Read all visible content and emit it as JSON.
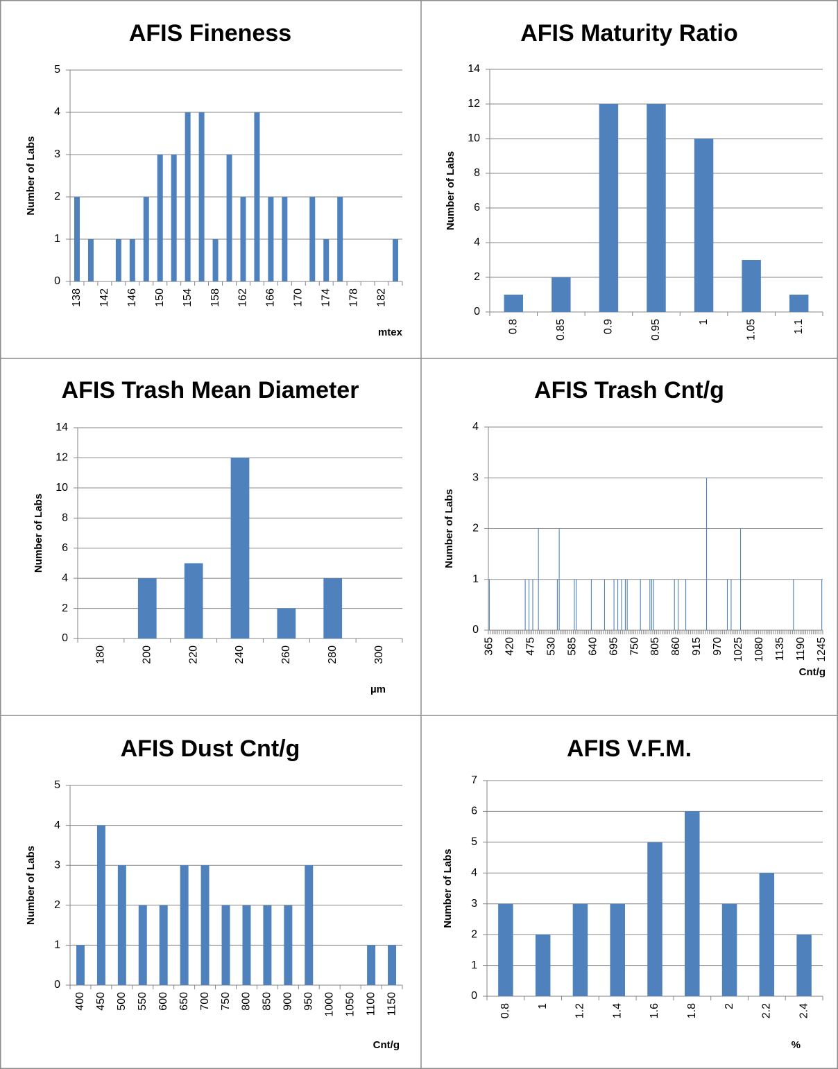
{
  "chart_data": [
    {
      "type": "bar",
      "title": "AFIS Fineness",
      "y_label": "Number of Labs",
      "x_label": "mtex",
      "color": "#4f81bd",
      "grid": true,
      "categories": [
        138,
        null,
        142,
        null,
        146,
        null,
        150,
        null,
        154,
        null,
        158,
        null,
        162,
        null,
        166,
        null,
        170,
        null,
        174,
        null,
        178,
        null,
        182,
        null
      ],
      "values": [
        2,
        1,
        0,
        1,
        1,
        2,
        3,
        3,
        4,
        4,
        1,
        3,
        2,
        4,
        2,
        2,
        0,
        2,
        1,
        2,
        0,
        0,
        0,
        1
      ],
      "ylim": [
        0,
        5
      ],
      "yticks": [
        0,
        1,
        2,
        3,
        4,
        5
      ]
    },
    {
      "type": "bar",
      "title": "AFIS Maturity Ratio",
      "y_label": "Number of Labs",
      "color": "#4f81bd",
      "grid": true,
      "categories": [
        0.8,
        0.85,
        0.9,
        0.95,
        1,
        1.05,
        1.1
      ],
      "values": [
        1,
        2,
        12,
        12,
        10,
        3,
        1
      ],
      "ylim": [
        0,
        14
      ],
      "yticks": [
        0,
        2,
        4,
        6,
        8,
        10,
        12,
        14
      ]
    },
    {
      "type": "bar",
      "title": "AFIS Trash Mean Diameter",
      "y_label": "Number of Labs",
      "x_label": "µm",
      "color": "#4f81bd",
      "grid": true,
      "categories": [
        180,
        200,
        220,
        240,
        260,
        280,
        300
      ],
      "values": [
        0,
        4,
        5,
        12,
        2,
        4,
        0
      ],
      "ylim": [
        0,
        14
      ],
      "yticks": [
        0,
        2,
        4,
        6,
        8,
        10,
        12,
        14
      ]
    },
    {
      "type": "bar",
      "title": "AFIS Trash Cnt/g",
      "y_label": "Number of Labs",
      "x_label": "Cnt/g",
      "color": "#4f81bd",
      "grid": true,
      "categories": [
        365,
        null,
        null,
        null,
        null,
        null,
        null,
        null,
        null,
        null,
        null,
        420,
        null,
        null,
        null,
        null,
        null,
        null,
        null,
        null,
        null,
        null,
        475,
        null,
        null,
        null,
        null,
        null,
        null,
        null,
        null,
        null,
        null,
        530,
        null,
        null,
        null,
        null,
        null,
        null,
        null,
        null,
        null,
        null,
        585,
        null,
        null,
        null,
        null,
        null,
        null,
        null,
        null,
        null,
        null,
        640,
        null,
        null,
        null,
        null,
        null,
        null,
        null,
        null,
        null,
        null,
        695,
        null,
        null,
        null,
        null,
        null,
        null,
        null,
        null,
        null,
        null,
        750,
        null,
        null,
        null,
        null,
        null,
        null,
        null,
        null,
        null,
        null,
        805,
        null,
        null,
        null,
        null,
        null,
        null,
        null,
        null,
        null,
        null,
        860,
        null,
        null,
        null,
        null,
        null,
        null,
        null,
        null,
        null,
        null,
        915,
        null,
        null,
        null,
        null,
        null,
        null,
        null,
        null,
        null,
        null,
        970,
        null,
        null,
        null,
        null,
        null,
        null,
        null,
        null,
        null,
        null,
        1025,
        null,
        null,
        null,
        null,
        null,
        null,
        null,
        null,
        null,
        null,
        1080,
        null,
        null,
        null,
        null,
        null,
        null,
        null,
        null,
        null,
        null,
        1135,
        null,
        null,
        null,
        null,
        null,
        null,
        null,
        null,
        null,
        null,
        1190,
        null,
        null,
        null,
        null,
        null,
        null,
        null,
        null,
        null,
        null,
        1245
      ],
      "values": [
        1,
        0,
        0,
        0,
        0,
        0,
        0,
        0,
        0,
        0,
        0,
        0,
        0,
        0,
        0,
        0,
        0,
        0,
        0,
        1,
        0,
        1,
        0,
        1,
        0,
        0,
        2,
        0,
        0,
        0,
        0,
        0,
        0,
        0,
        0,
        0,
        1,
        2,
        0,
        0,
        0,
        0,
        0,
        0,
        0,
        1,
        1,
        0,
        0,
        0,
        0,
        0,
        0,
        0,
        1,
        0,
        0,
        0,
        0,
        0,
        0,
        1,
        0,
        0,
        0,
        0,
        1,
        0,
        1,
        0,
        1,
        0,
        1,
        1,
        0,
        0,
        0,
        0,
        0,
        0,
        1,
        0,
        0,
        0,
        0,
        1,
        1,
        1,
        0,
        0,
        0,
        0,
        0,
        0,
        0,
        0,
        0,
        0,
        1,
        0,
        1,
        0,
        0,
        0,
        1,
        0,
        0,
        0,
        0,
        0,
        0,
        0,
        0,
        0,
        0,
        3,
        0,
        0,
        0,
        0,
        0,
        0,
        0,
        0,
        0,
        0,
        1,
        0,
        1,
        0,
        0,
        0,
        0,
        2,
        0,
        0,
        0,
        0,
        0,
        0,
        0,
        0,
        0,
        0,
        0,
        0,
        0,
        0,
        0,
        0,
        0,
        0,
        0,
        0,
        0,
        0,
        0,
        0,
        0,
        0,
        0,
        1,
        0,
        0,
        0,
        0,
        0,
        0,
        0,
        0,
        0,
        0,
        0,
        0,
        0,
        0,
        1
      ],
      "ylim": [
        0,
        4
      ],
      "yticks": [
        0,
        1,
        2,
        3,
        4
      ]
    },
    {
      "type": "bar",
      "title": "AFIS Dust Cnt/g",
      "y_label": "Number of Labs",
      "x_label": "Cnt/g",
      "color": "#4f81bd",
      "grid": true,
      "categories": [
        400,
        450,
        500,
        550,
        600,
        650,
        700,
        750,
        800,
        850,
        900,
        950,
        1000,
        1050,
        1100,
        1150
      ],
      "values": [
        1,
        4,
        3,
        2,
        2,
        3,
        3,
        2,
        2,
        2,
        2,
        3,
        0,
        0,
        1,
        1
      ],
      "ylim": [
        0,
        5
      ],
      "yticks": [
        0,
        1,
        2,
        3,
        4,
        5
      ]
    },
    {
      "type": "bar",
      "title": "AFIS V.F.M.",
      "y_label": "Number of Labs",
      "x_label": "%",
      "color": "#4f81bd",
      "grid": true,
      "categories": [
        0.8,
        1,
        1.2,
        1.4,
        1.6,
        1.8,
        2,
        2.2,
        2.4
      ],
      "values": [
        3,
        2,
        3,
        3,
        5,
        6,
        3,
        4,
        2
      ],
      "ylim": [
        0,
        7
      ],
      "yticks": [
        0,
        1,
        2,
        3,
        4,
        5,
        6,
        7
      ]
    }
  ]
}
